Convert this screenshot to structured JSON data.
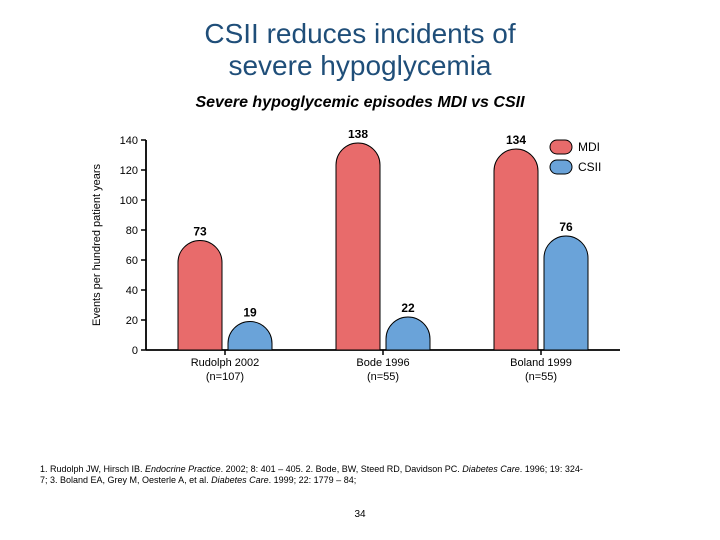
{
  "title_line1": "CSII reduces incidents of",
  "title_line2": "severe hypoglycemia",
  "subtitle": "Severe hypoglycemic episodes MDI vs CSII",
  "page_number": "34",
  "chart": {
    "type": "bar",
    "y_axis_label": "Events per hundred patient years",
    "ylim": [
      0,
      140
    ],
    "ytick_step": 20,
    "yticks": [
      "0",
      "20",
      "40",
      "60",
      "80",
      "100",
      "120",
      "140"
    ],
    "axis_color": "#000000",
    "axis_fontsize": 11,
    "axis_label_fontsize": 11,
    "background_color": "#ffffff",
    "bar_stroke": "#000000",
    "bar_stroke_width": 1,
    "value_fontsize": 12,
    "value_fontweight": "bold",
    "xlabel_fontsize": 11,
    "series": {
      "mdi": {
        "label": "MDI",
        "color": "#e86b6b"
      },
      "csii": {
        "label": "CSII",
        "color": "#6aa3d9"
      }
    },
    "groups": [
      {
        "xlabel_line1": "Rudolph 2002",
        "xlabel_line2": "(n=107)",
        "mdi": 73,
        "csii": 19
      },
      {
        "xlabel_line1": "Bode 1996",
        "xlabel_line2": "(n=55)",
        "mdi": 138,
        "csii": 22
      },
      {
        "xlabel_line1": "Boland 1999",
        "xlabel_line2": "(n=55)",
        "mdi": 134,
        "csii": 76
      }
    ],
    "legend": {
      "position": "top-right"
    }
  },
  "references": {
    "r1_a": "1. Rudolph JW, Hirsch IB. ",
    "r1_i": "Endocrine Practice",
    "r1_b": ". 2002; 8: 401 – 405. 2. Bode, BW, Steed RD, Davidson PC. ",
    "r1_i2": "Diabetes Care",
    "r1_c": ". 1996; 19: 324-",
    "r2_a": "7; 3. Boland EA, Grey M, Oesterle A, et al. ",
    "r2_i": "Diabetes Care",
    "r2_b": ". 1999; 22: 1779 – 84;"
  }
}
